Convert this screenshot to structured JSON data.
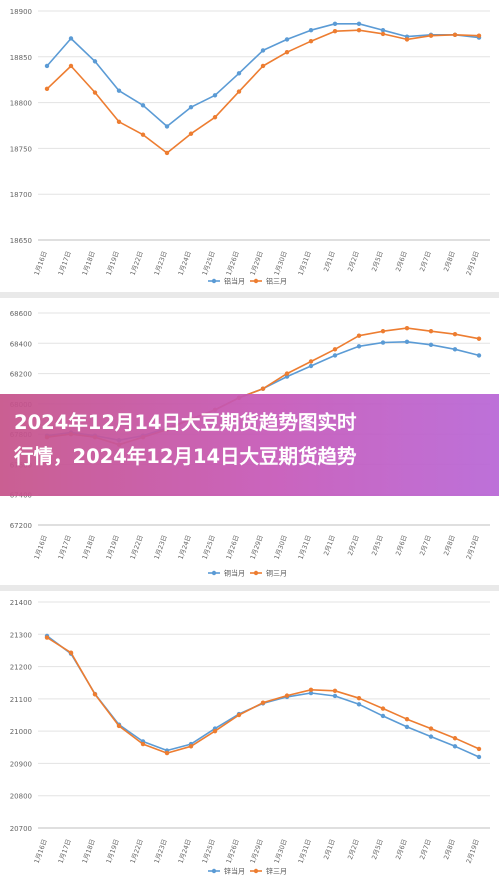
{
  "chart_data": [
    {
      "type": "line",
      "categories": [
        "1月16日",
        "1月17日",
        "1月18日",
        "1月19日",
        "1月22日",
        "1月23日",
        "1月24日",
        "1月25日",
        "1月26日",
        "1月29日",
        "1月30日",
        "1月31日",
        "2月1日",
        "2月2日",
        "2月5日",
        "2月6日",
        "2月7日",
        "2月8日",
        "2月19日"
      ],
      "ylim": [
        18650,
        18900
      ],
      "yticks": [
        18650,
        18700,
        18750,
        18800,
        18850,
        18900
      ],
      "series": [
        {
          "name": "铝当月",
          "color": "#5b9bd5",
          "values": [
            18840,
            18870,
            18845,
            18813,
            18797,
            18774,
            18795,
            18808,
            18832,
            18857,
            18869,
            18879,
            18886,
            18886,
            18879,
            18872,
            18874,
            18874,
            18871
          ]
        },
        {
          "name": "铝三月",
          "color": "#ed7d31",
          "values": [
            18815,
            18840,
            18811,
            18779,
            18765,
            18745,
            18766,
            18784,
            18812,
            18840,
            18855,
            18867,
            18878,
            18879,
            18875,
            18869,
            18873,
            18874,
            18873
          ]
        }
      ],
      "grid": true,
      "legend": "bottom"
    },
    {
      "type": "line",
      "categories": [
        "1月16日",
        "1月17日",
        "1月18日",
        "1月19日",
        "1月22日",
        "1月23日",
        "1月24日",
        "1月25日",
        "1月26日",
        "1月29日",
        "1月30日",
        "1月31日",
        "2月1日",
        "2月2日",
        "2月5日",
        "2月6日",
        "2月7日",
        "2月8日",
        "2月19日"
      ],
      "ylim": [
        67200,
        68600
      ],
      "yticks": [
        67200,
        67400,
        67600,
        67800,
        68000,
        68200,
        68400,
        68600
      ],
      "series": [
        {
          "name": "铜当月",
          "color": "#5b9bd5",
          "values": [
            67790,
            67810,
            67790,
            67760,
            67790,
            67840,
            67900,
            67960,
            68040,
            68100,
            68180,
            68250,
            68320,
            68380,
            68405,
            68410,
            68390,
            68360,
            68320
          ]
        },
        {
          "name": "铜三月",
          "color": "#ed7d31",
          "values": [
            67780,
            67800,
            67780,
            67730,
            67780,
            67830,
            67900,
            67960,
            68040,
            68100,
            68200,
            68280,
            68360,
            68450,
            68480,
            68500,
            68480,
            68460,
            68430
          ]
        }
      ],
      "grid": true,
      "legend": "bottom"
    },
    {
      "type": "line",
      "categories": [
        "1月16日",
        "1月17日",
        "1月18日",
        "1月19日",
        "1月22日",
        "1月23日",
        "1月24日",
        "1月25日",
        "1月26日",
        "1月29日",
        "1月30日",
        "1月31日",
        "2月1日",
        "2月2日",
        "2月5日",
        "2月6日",
        "2月7日",
        "2月8日",
        "2月19日"
      ],
      "ylim": [
        20700,
        21400
      ],
      "yticks": [
        20700,
        20800,
        20900,
        21000,
        21100,
        21200,
        21300,
        21400
      ],
      "series": [
        {
          "name": "锌当月",
          "color": "#5b9bd5",
          "values": [
            21295,
            21240,
            21115,
            21020,
            20968,
            20940,
            20960,
            21008,
            21053,
            21086,
            21106,
            21118,
            21109,
            21083,
            21047,
            21013,
            20983,
            20953,
            20920
          ]
        },
        {
          "name": "锌三月",
          "color": "#ed7d31",
          "values": [
            21290,
            21243,
            21114,
            21016,
            20960,
            20932,
            20953,
            21000,
            21050,
            21088,
            21110,
            21128,
            21125,
            21102,
            21070,
            21037,
            21008,
            20978,
            20945
          ]
        }
      ],
      "grid": true,
      "legend": "bottom"
    }
  ],
  "banner": {
    "line1": "2024年12月14日大豆期货趋势图实时",
    "line2": "行情，2024年12月14日大豆期货趋势"
  }
}
